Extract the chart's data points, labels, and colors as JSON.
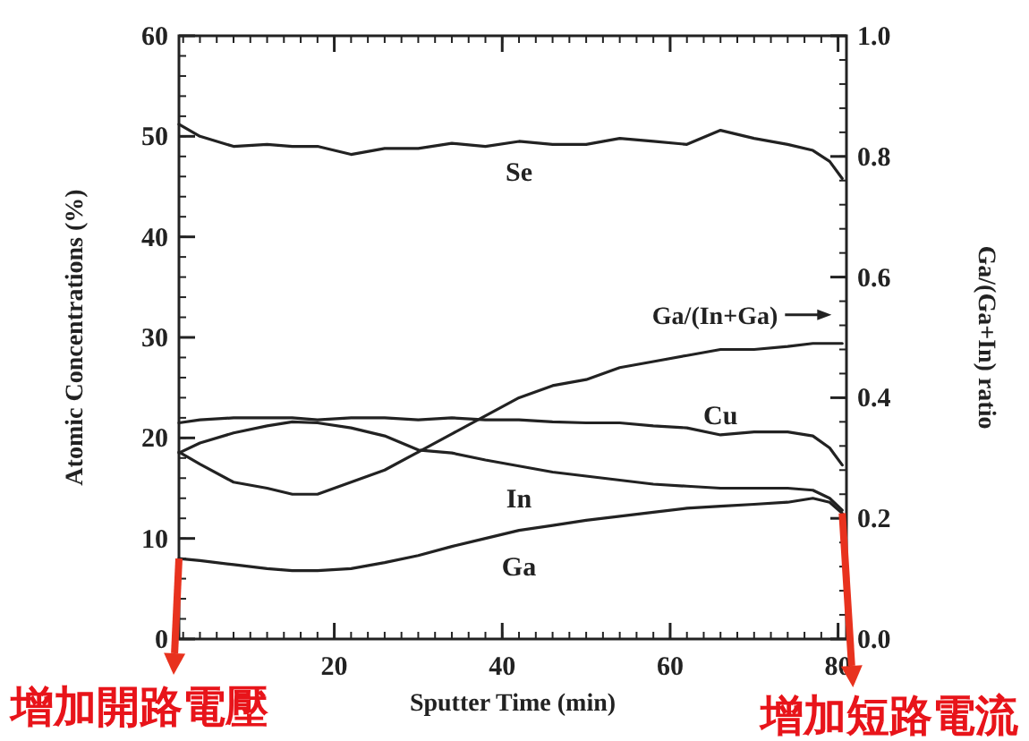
{
  "chart_data": {
    "type": "line",
    "xlabel": "Sputter Time (min)",
    "ylabel": "Atomic Concentrations (%)",
    "y2label": "Ga/(Ga+In) ratio",
    "x": [
      1.5,
      4,
      8,
      12,
      15,
      18,
      22,
      26,
      30,
      34,
      38,
      42,
      46,
      50,
      54,
      58,
      62,
      66,
      70,
      74,
      77,
      79,
      80.5
    ],
    "xlim": [
      1.5,
      81
    ],
    "xticks": [
      20,
      40,
      60,
      80
    ],
    "ylim": [
      0,
      60
    ],
    "yticks": [
      0,
      10,
      20,
      30,
      40,
      50,
      60
    ],
    "y2lim": [
      0,
      1
    ],
    "y2ticks": [
      {
        "value": 0,
        "label": "0.0"
      },
      0.2,
      0.4,
      0.6,
      0.8,
      {
        "value": 1,
        "label": "1.0"
      }
    ],
    "series": [
      {
        "name": "Se",
        "color": "#222222",
        "values": [
          51.2,
          50,
          49,
          49.2,
          49,
          49,
          48.2,
          48.8,
          48.8,
          49.3,
          49,
          49.5,
          49.2,
          49.2,
          49.8,
          49.5,
          49.2,
          50.6,
          49.8,
          49.2,
          48.6,
          47.5,
          45.8
        ]
      },
      {
        "name": "Cu",
        "color": "#222222",
        "values": [
          21.5,
          21.8,
          22,
          22,
          22,
          21.8,
          22,
          22,
          21.8,
          22,
          21.8,
          21.8,
          21.6,
          21.5,
          21.5,
          21.2,
          21,
          20.3,
          20.6,
          20.6,
          20.2,
          19,
          17.3
        ]
      },
      {
        "name": "In",
        "color": "#222222",
        "values": [
          18.5,
          19.5,
          20.5,
          21.2,
          21.6,
          21.5,
          21,
          20.2,
          18.8,
          18.5,
          17.8,
          17.2,
          16.6,
          16.2,
          15.8,
          15.4,
          15.2,
          15,
          15,
          15,
          14.8,
          14,
          12.8
        ]
      },
      {
        "name": "Ga/(In+Ga)",
        "color": "#222222",
        "axis": "y2",
        "values": [
          0.31,
          0.29,
          0.26,
          0.25,
          0.24,
          0.24,
          0.26,
          0.28,
          0.31,
          0.34,
          0.37,
          0.4,
          0.42,
          0.43,
          0.45,
          0.46,
          0.47,
          0.48,
          0.48,
          0.485,
          0.49,
          0.49,
          0.49
        ]
      },
      {
        "name": "Ga",
        "color": "#222222",
        "values": [
          8,
          7.8,
          7.4,
          7,
          6.8,
          6.8,
          7,
          7.6,
          8.3,
          9.2,
          10,
          10.8,
          11.3,
          11.8,
          12.2,
          12.6,
          13,
          13.2,
          13.4,
          13.6,
          14,
          13.6,
          12.5
        ]
      }
    ],
    "annotations": [
      {
        "text": "增加開路電壓",
        "x": 1.5,
        "y": 8
      },
      {
        "text": "增加短路電流",
        "x": 80.5,
        "y": 12.5
      }
    ]
  }
}
